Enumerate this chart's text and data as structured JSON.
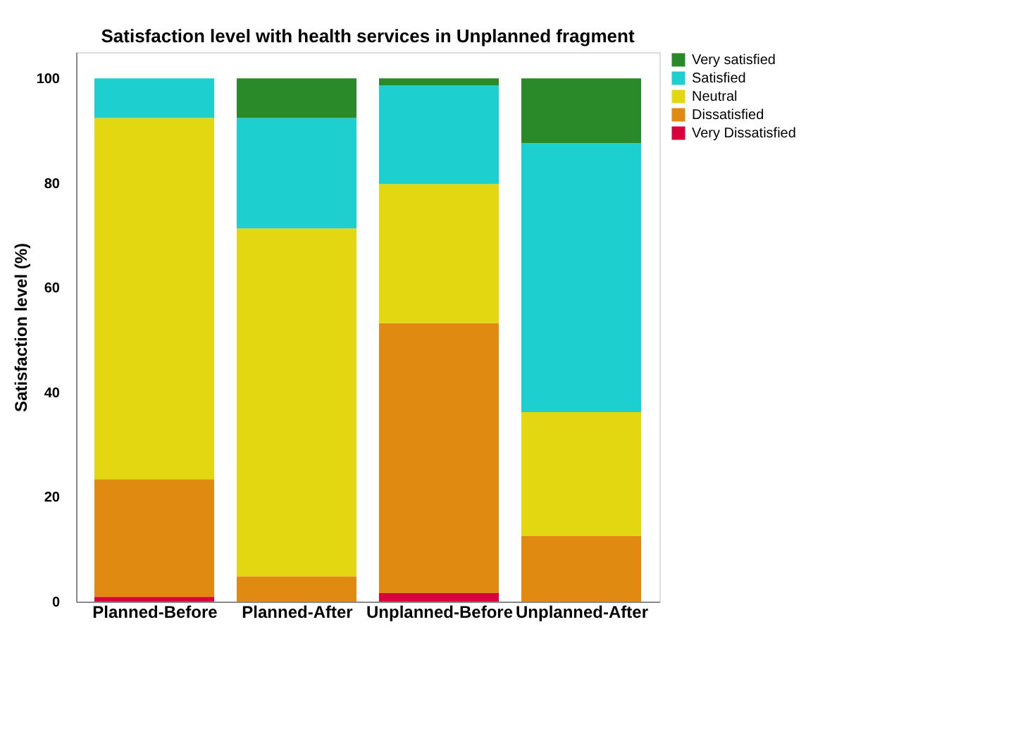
{
  "chart_data": {
    "type": "bar",
    "title": "Satisfaction level with health services in Unplanned fragment",
    "ylabel": "Satisfaction level (%)",
    "categories": [
      "Planned-Before",
      "Planned-After",
      "Unplanned-Before",
      "Unplanned-After"
    ],
    "stacked": true,
    "series": [
      {
        "name": "Very Dissatisfied",
        "color": "#d8003a",
        "values": [
          0.9,
          0,
          1.6,
          0
        ]
      },
      {
        "name": "Dissatisfied",
        "color": "#e08a12",
        "values": [
          22.5,
          4.8,
          51.6,
          12.6
        ]
      },
      {
        "name": "Neutral",
        "color": "#e3d712",
        "values": [
          69.0,
          66.5,
          26.6,
          23.6
        ]
      },
      {
        "name": "Satisfied",
        "color": "#1ecfcf",
        "values": [
          7.6,
          21.1,
          18.8,
          51.4
        ]
      },
      {
        "name": "Very satisfied",
        "color": "#2a8a2a",
        "values": [
          0,
          7.6,
          1.4,
          12.4
        ]
      }
    ],
    "ylim": [
      0,
      105
    ],
    "yticks": [
      0,
      20,
      40,
      60,
      80,
      100
    ],
    "grid": false,
    "legend": "top right"
  }
}
